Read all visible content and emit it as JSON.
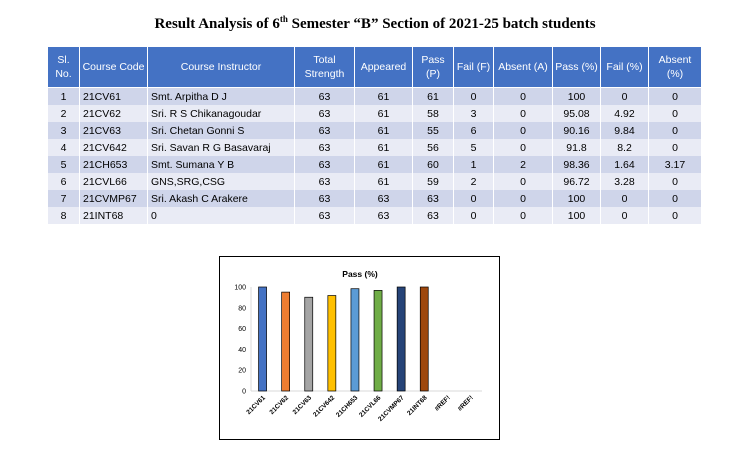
{
  "title": {
    "prefix": "Result Analysis of 6",
    "sup": "th",
    "suffix": " Semester “B” Section of 2021-25 batch students"
  },
  "table": {
    "headers": [
      "Sl. No.",
      "Course Code",
      "Course Instructor",
      "Total Strength",
      "Appeared",
      "Pass (P)",
      "Fail (F)",
      "Absent (A)",
      "Pass (%)",
      "Fail (%)",
      "Absent (%)"
    ],
    "rows": [
      [
        "1",
        "21CV61",
        "Smt. Arpitha D J",
        "63",
        "61",
        "61",
        "0",
        "0",
        "100",
        "0",
        "0"
      ],
      [
        "2",
        "21CV62",
        "Sri. R S Chikanagoudar",
        "63",
        "61",
        "58",
        "3",
        "0",
        "95.08",
        "4.92",
        "0"
      ],
      [
        "3",
        "21CV63",
        "Sri. Chetan Gonni S",
        "63",
        "61",
        "55",
        "6",
        "0",
        "90.16",
        "9.84",
        "0"
      ],
      [
        "4",
        "21CV642",
        "Sri. Savan R G Basavaraj",
        "63",
        "61",
        "56",
        "5",
        "0",
        "91.8",
        "8.2",
        "0"
      ],
      [
        "5",
        "21CH653",
        "Smt. Sumana Y B",
        "63",
        "61",
        "60",
        "1",
        "2",
        "98.36",
        "1.64",
        "3.17"
      ],
      [
        "6",
        "21CVL66",
        "GNS,SRG,CSG",
        "63",
        "61",
        "59",
        "2",
        "0",
        "96.72",
        "3.28",
        "0"
      ],
      [
        "7",
        "21CVMP67",
        "Sri. Akash C Arakere",
        "63",
        "63",
        "63",
        "0",
        "0",
        "100",
        "0",
        "0"
      ],
      [
        "8",
        "21INT68",
        "0",
        "63",
        "63",
        "63",
        "0",
        "0",
        "100",
        "0",
        "0"
      ]
    ]
  },
  "chart_data": {
    "type": "bar",
    "title": "Pass (%)",
    "categories": [
      "21CV61",
      "21CV62",
      "21CV63",
      "21CV642",
      "21CH653",
      "21CVL66",
      "21CVMP67",
      "21INT68",
      "#REF!",
      "#REF!"
    ],
    "values": [
      100,
      95.08,
      90.16,
      91.8,
      98.36,
      96.72,
      100,
      100,
      null,
      null
    ],
    "colors": [
      "#4472c4",
      "#ed7d31",
      "#a5a5a5",
      "#ffc000",
      "#5b9bd5",
      "#70ad47",
      "#264478",
      "#9e480e",
      "#636363",
      "#997300"
    ],
    "ylim": [
      0,
      100
    ],
    "yticks": [
      "0",
      "20",
      "40",
      "60",
      "80",
      "100"
    ],
    "grid": false,
    "legend": "none"
  }
}
